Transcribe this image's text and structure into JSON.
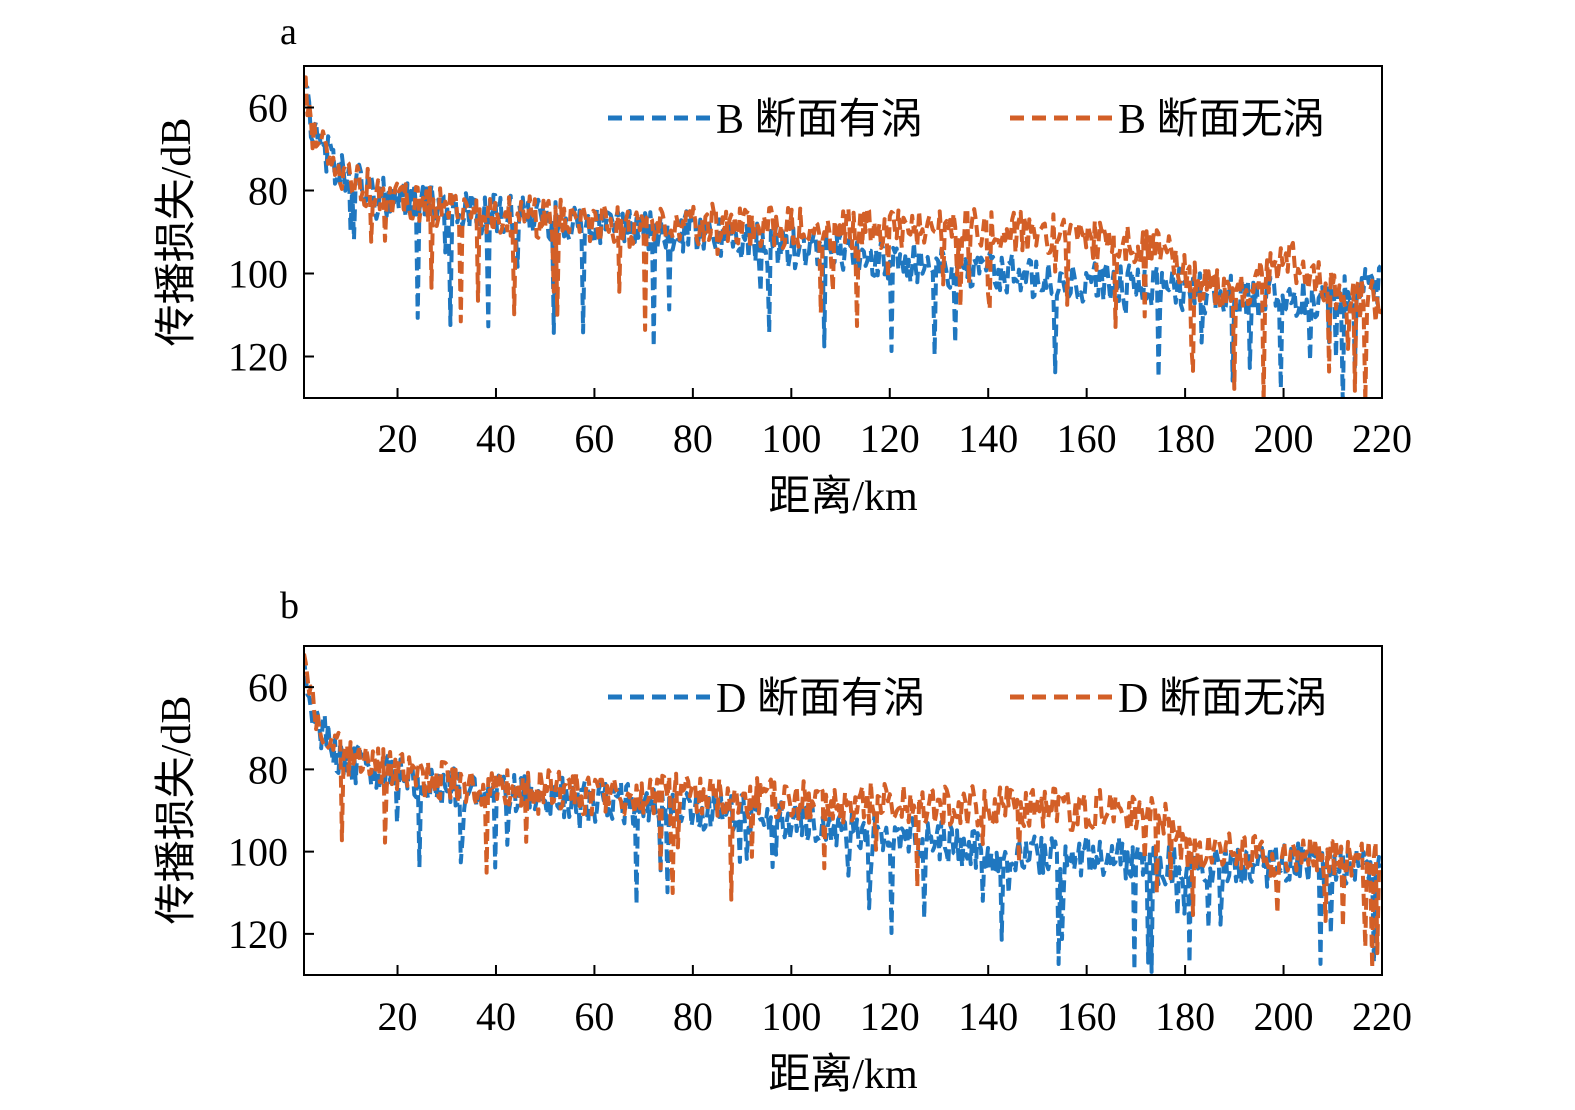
{
  "chart_data": [
    {
      "panel_label": "a",
      "type": "line",
      "xlabel": "距离/km",
      "ylabel": "传播损失/dB",
      "xlim": [
        1,
        220
      ],
      "ylim": [
        50,
        130
      ],
      "y_inverted": true,
      "xticks": [
        20,
        40,
        60,
        80,
        100,
        120,
        140,
        160,
        180,
        200,
        220
      ],
      "yticks": [
        60,
        80,
        100,
        120
      ],
      "legend_position": "top-right",
      "line_style": "dashed",
      "series": [
        {
          "name": "B 断面有涡",
          "color": "#1f77c0",
          "x": [
            1,
            2,
            3,
            5,
            7,
            10,
            15,
            20,
            25,
            30,
            35,
            40,
            45,
            50,
            55,
            60,
            65,
            70,
            75,
            80,
            85,
            90,
            95,
            100,
            105,
            110,
            115,
            120,
            125,
            130,
            135,
            140,
            145,
            150,
            155,
            160,
            165,
            170,
            175,
            180,
            185,
            190,
            195,
            200,
            205,
            210,
            215,
            220
          ],
          "values": [
            55,
            62,
            66,
            70,
            74,
            77,
            80,
            82,
            83,
            84,
            85,
            86,
            86,
            87,
            87,
            88,
            89,
            89,
            90,
            90,
            91,
            92,
            93,
            94,
            95,
            95,
            96,
            97,
            97,
            98,
            99,
            100,
            100,
            101,
            101,
            102,
            102,
            103,
            103,
            104,
            105,
            105,
            106,
            106,
            106,
            105,
            104,
            103
          ]
        },
        {
          "name": "B 断面无涡",
          "color": "#d35f27",
          "x": [
            1,
            2,
            3,
            5,
            7,
            10,
            15,
            20,
            25,
            30,
            35,
            40,
            45,
            50,
            55,
            60,
            65,
            70,
            75,
            80,
            85,
            90,
            95,
            100,
            105,
            110,
            115,
            120,
            125,
            130,
            135,
            140,
            145,
            150,
            155,
            160,
            165,
            170,
            175,
            180,
            185,
            190,
            195,
            200,
            205,
            210,
            215,
            220
          ],
          "values": [
            55,
            62,
            66,
            70,
            74,
            77,
            80,
            82,
            83,
            84,
            85,
            86,
            86,
            87,
            87,
            88,
            88,
            88,
            88,
            88,
            88,
            89,
            89,
            89,
            89,
            89,
            89,
            89,
            89,
            89,
            89,
            90,
            90,
            90,
            91,
            92,
            93,
            93,
            92,
            100,
            103,
            104,
            102,
            96,
            100,
            104,
            106,
            107
          ]
        }
      ]
    },
    {
      "panel_label": "b",
      "type": "line",
      "xlabel": "距离/km",
      "ylabel": "传播损失/dB",
      "xlim": [
        1,
        220
      ],
      "ylim": [
        50,
        130
      ],
      "y_inverted": true,
      "xticks": [
        20,
        40,
        60,
        80,
        100,
        120,
        140,
        160,
        180,
        200,
        220
      ],
      "yticks": [
        60,
        80,
        100,
        120
      ],
      "legend_position": "top-right",
      "line_style": "dashed",
      "series": [
        {
          "name": "D 断面有涡",
          "color": "#1f77c0",
          "x": [
            1,
            2,
            3,
            5,
            7,
            10,
            15,
            20,
            25,
            30,
            35,
            40,
            45,
            50,
            55,
            60,
            65,
            70,
            75,
            80,
            85,
            90,
            95,
            100,
            105,
            110,
            115,
            120,
            125,
            130,
            135,
            140,
            145,
            150,
            155,
            160,
            165,
            170,
            175,
            180,
            185,
            190,
            195,
            200,
            205,
            210,
            215,
            220
          ],
          "values": [
            55,
            62,
            67,
            71,
            75,
            78,
            80,
            82,
            83,
            84,
            85,
            86,
            86,
            87,
            87,
            88,
            88,
            89,
            89,
            90,
            90,
            91,
            92,
            93,
            93,
            94,
            95,
            95,
            96,
            97,
            99,
            101,
            102,
            101,
            101,
            101,
            101,
            102,
            103,
            104,
            104,
            104,
            104,
            103,
            103,
            104,
            104,
            103
          ]
        },
        {
          "name": "D 断面无涡",
          "color": "#d35f27",
          "x": [
            1,
            2,
            3,
            5,
            7,
            10,
            15,
            20,
            25,
            30,
            35,
            40,
            45,
            50,
            55,
            60,
            65,
            70,
            75,
            80,
            85,
            90,
            95,
            100,
            105,
            110,
            115,
            120,
            125,
            130,
            135,
            140,
            145,
            150,
            155,
            160,
            165,
            170,
            175,
            180,
            185,
            190,
            195,
            200,
            205,
            210,
            215,
            220
          ],
          "values": [
            54,
            61,
            66,
            70,
            74,
            77,
            79,
            81,
            82,
            83,
            84,
            84,
            85,
            85,
            86,
            86,
            86,
            86,
            86,
            86,
            87,
            87,
            87,
            87,
            88,
            88,
            88,
            88,
            89,
            89,
            89,
            89,
            89,
            89,
            90,
            90,
            90,
            91,
            90,
            100,
            101,
            100,
            101,
            101,
            101,
            102,
            102,
            102
          ]
        }
      ]
    }
  ]
}
